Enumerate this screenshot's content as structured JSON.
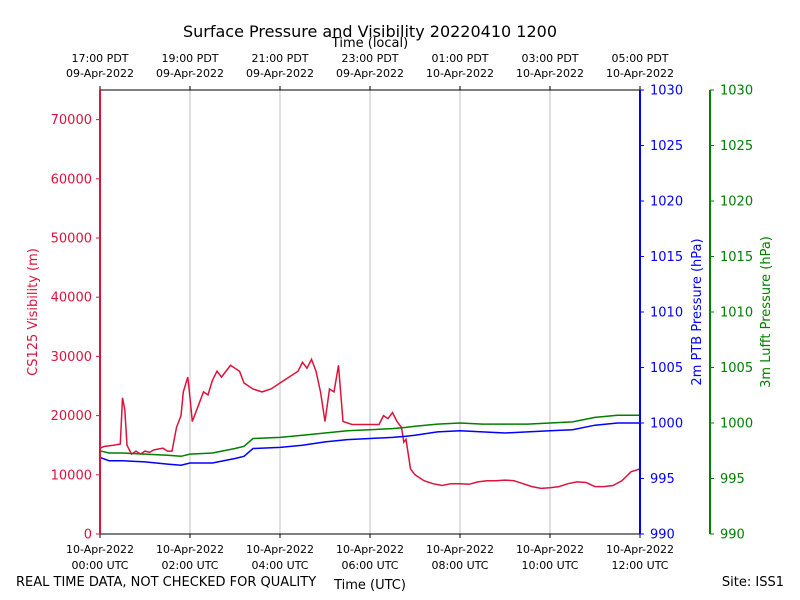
{
  "chart_data": {
    "type": "line",
    "title": "Surface Pressure and Visibility 20220410 1200",
    "top_axis_label": "Time (local)",
    "xlabel": "Time (UTC)",
    "x_unit": "hours since 10-Apr-2022 00:00 UTC",
    "xlim": [
      0,
      12
    ],
    "x_ticks_utc": [
      {
        "x": 0,
        "line1": "10-Apr-2022",
        "line2": "00:00 UTC"
      },
      {
        "x": 2,
        "line1": "10-Apr-2022",
        "line2": "02:00 UTC"
      },
      {
        "x": 4,
        "line1": "10-Apr-2022",
        "line2": "04:00 UTC"
      },
      {
        "x": 6,
        "line1": "10-Apr-2022",
        "line2": "06:00 UTC"
      },
      {
        "x": 8,
        "line1": "10-Apr-2022",
        "line2": "08:00 UTC"
      },
      {
        "x": 10,
        "line1": "10-Apr-2022",
        "line2": "10:00 UTC"
      },
      {
        "x": 12,
        "line1": "10-Apr-2022",
        "line2": "12:00 UTC"
      }
    ],
    "x_ticks_local": [
      {
        "x": 0,
        "line1": "17:00 PDT",
        "line2": "09-Apr-2022"
      },
      {
        "x": 2,
        "line1": "19:00 PDT",
        "line2": "09-Apr-2022"
      },
      {
        "x": 4,
        "line1": "21:00 PDT",
        "line2": "09-Apr-2022"
      },
      {
        "x": 6,
        "line1": "23:00 PDT",
        "line2": "09-Apr-2022"
      },
      {
        "x": 8,
        "line1": "01:00 PDT",
        "line2": "10-Apr-2022"
      },
      {
        "x": 10,
        "line1": "03:00 PDT",
        "line2": "10-Apr-2022"
      },
      {
        "x": 12,
        "line1": "05:00 PDT",
        "line2": "10-Apr-2022"
      }
    ],
    "axes": {
      "visibility": {
        "label": "CS125 Visibility (m)",
        "ylim": [
          0,
          75000
        ],
        "ticks": [
          "0",
          "10000",
          "20000",
          "30000",
          "40000",
          "50000",
          "60000",
          "70000"
        ]
      },
      "ptb": {
        "label": "2m PTB Pressure (hPa)",
        "ylim": [
          990,
          1030
        ],
        "ticks": [
          "990",
          "995",
          "1000",
          "1005",
          "1010",
          "1015",
          "1020",
          "1025",
          "1030"
        ]
      },
      "lufft": {
        "label": "3m Lufft Pressure (hPa)",
        "ylim": [
          990,
          1030
        ],
        "ticks": [
          "990",
          "995",
          "1000",
          "1005",
          "1010",
          "1015",
          "1020",
          "1025",
          "1030"
        ]
      }
    },
    "grid": "vertical",
    "series": [
      {
        "name": "CS125 Visibility",
        "axis": "visibility",
        "color": "#dc143c",
        "x": [
          0,
          0.1,
          0.3,
          0.45,
          0.5,
          0.55,
          0.6,
          0.7,
          0.8,
          0.9,
          1.0,
          1.1,
          1.2,
          1.4,
          1.5,
          1.6,
          1.7,
          1.8,
          1.85,
          1.95,
          2.0,
          2.05,
          2.2,
          2.3,
          2.4,
          2.5,
          2.6,
          2.7,
          2.9,
          3.0,
          3.1,
          3.2,
          3.4,
          3.6,
          3.8,
          4.0,
          4.2,
          4.4,
          4.5,
          4.6,
          4.7,
          4.8,
          4.9,
          5.0,
          5.1,
          5.2,
          5.3,
          5.4,
          5.6,
          5.8,
          6.0,
          6.2,
          6.3,
          6.4,
          6.5,
          6.6,
          6.7,
          6.75,
          6.8,
          6.9,
          7.0,
          7.2,
          7.4,
          7.6,
          7.8,
          8.0,
          8.2,
          8.4,
          8.6,
          8.8,
          9.0,
          9.2,
          9.4,
          9.6,
          9.8,
          10.0,
          10.2,
          10.4,
          10.6,
          10.8,
          11.0,
          11.2,
          11.4,
          11.6,
          11.8,
          12.0
        ],
        "values": [
          14500,
          14800,
          15000,
          15200,
          23000,
          21000,
          15000,
          13500,
          14000,
          13500,
          14000,
          13800,
          14200,
          14500,
          14000,
          14000,
          18000,
          20000,
          24000,
          26500,
          23000,
          19000,
          22000,
          24000,
          23500,
          26000,
          27500,
          26500,
          28500,
          28000,
          27500,
          25500,
          24500,
          24000,
          24500,
          25500,
          26500,
          27500,
          29000,
          28000,
          29500,
          27500,
          24000,
          19000,
          24500,
          24000,
          28500,
          19000,
          18500,
          18500,
          18500,
          18500,
          20000,
          19500,
          20500,
          19000,
          18000,
          15500,
          16000,
          11000,
          10000,
          9000,
          8500,
          8200,
          8500,
          8500,
          8400,
          8800,
          9000,
          9000,
          9100,
          9000,
          8500,
          8000,
          7700,
          7800,
          8000,
          8500,
          8800,
          8700,
          8000,
          8000,
          8200,
          9000,
          10500,
          11000
        ]
      },
      {
        "name": "2m PTB Pressure",
        "axis": "ptb",
        "color": "#0000ff",
        "x": [
          0,
          0.2,
          0.5,
          1.0,
          1.5,
          1.8,
          2.0,
          2.5,
          3.0,
          3.2,
          3.4,
          4.0,
          4.5,
          5.0,
          5.5,
          6.0,
          6.5,
          6.8,
          7.0,
          7.5,
          8.0,
          8.5,
          9.0,
          9.5,
          10.0,
          10.5,
          11.0,
          11.5,
          12.0
        ],
        "values": [
          996.9,
          996.6,
          996.6,
          996.5,
          996.3,
          996.2,
          996.4,
          996.4,
          996.8,
          997.0,
          997.7,
          997.8,
          998.0,
          998.3,
          998.5,
          998.6,
          998.7,
          998.8,
          998.9,
          999.2,
          999.3,
          999.2,
          999.1,
          999.2,
          999.3,
          999.4,
          999.8,
          1000.0,
          1000.0
        ]
      },
      {
        "name": "3m Lufft Pressure",
        "axis": "lufft",
        "color": "#008000",
        "x": [
          0,
          0.2,
          0.5,
          1.0,
          1.5,
          1.8,
          2.0,
          2.5,
          3.0,
          3.2,
          3.4,
          4.0,
          4.5,
          5.0,
          5.5,
          6.0,
          6.5,
          6.8,
          7.0,
          7.5,
          8.0,
          8.5,
          9.0,
          9.5,
          10.0,
          10.5,
          11.0,
          11.5,
          12.0
        ],
        "values": [
          997.5,
          997.3,
          997.3,
          997.2,
          997.1,
          997.0,
          997.2,
          997.3,
          997.7,
          997.9,
          998.6,
          998.7,
          998.9,
          999.1,
          999.3,
          999.4,
          999.5,
          999.6,
          999.7,
          999.9,
          1000.0,
          999.9,
          999.9,
          999.9,
          1000.0,
          1000.1,
          1000.5,
          1000.7,
          1000.7
        ]
      }
    ]
  },
  "footer": {
    "left": "REAL TIME DATA, NOT CHECKED FOR QUALITY",
    "right": "Site: ISS1"
  }
}
